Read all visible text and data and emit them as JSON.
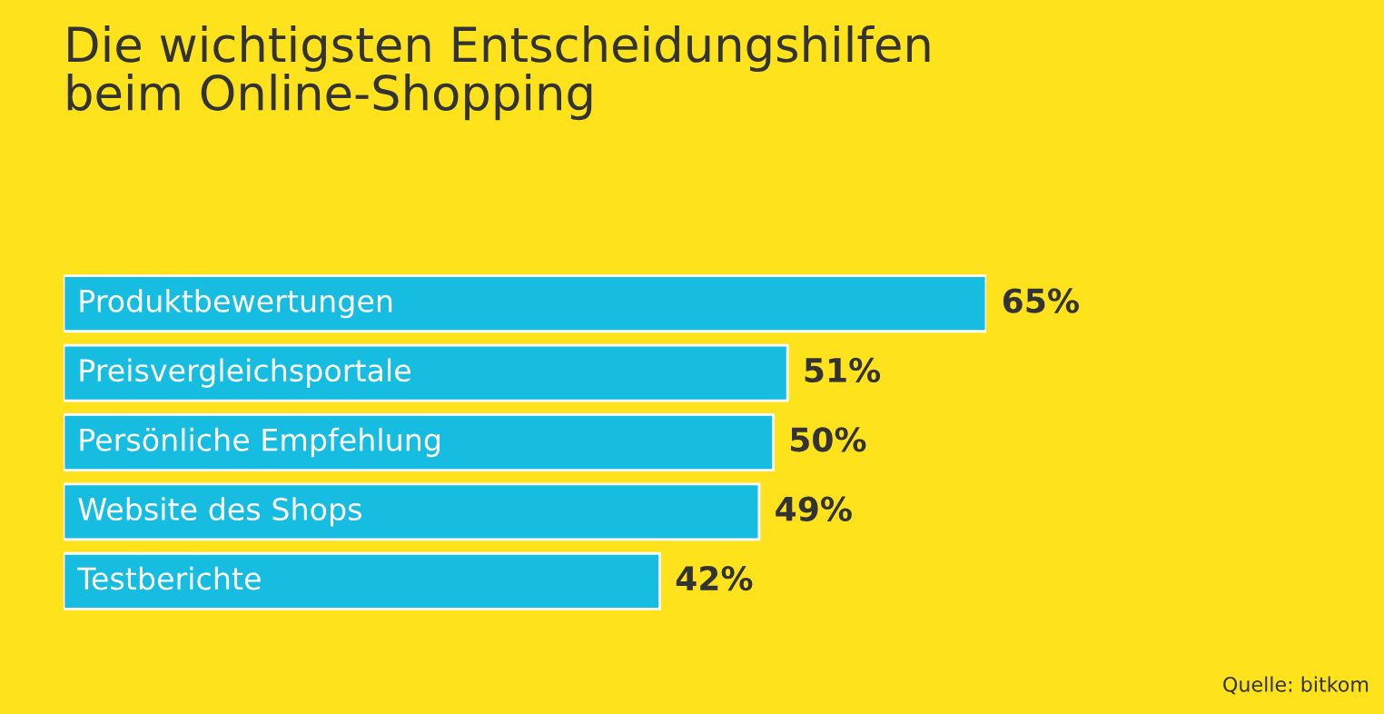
{
  "chart_data": {
    "type": "bar",
    "orientation": "horizontal",
    "title": "Die wichtigsten Entscheidungshilfen\nbeim Online-Shopping",
    "categories": [
      "Produktbewertungen",
      "Preisvergleichsportale",
      "Persönliche Empfehlung",
      "Website des Shops",
      "Testberichte"
    ],
    "values": [
      65,
      51,
      50,
      49,
      42
    ],
    "value_labels": [
      "65%",
      "51%",
      "50%",
      "49%",
      "42%"
    ],
    "color": "#17bde0",
    "annotations": [
      "Quelle: bitkom"
    ]
  }
}
